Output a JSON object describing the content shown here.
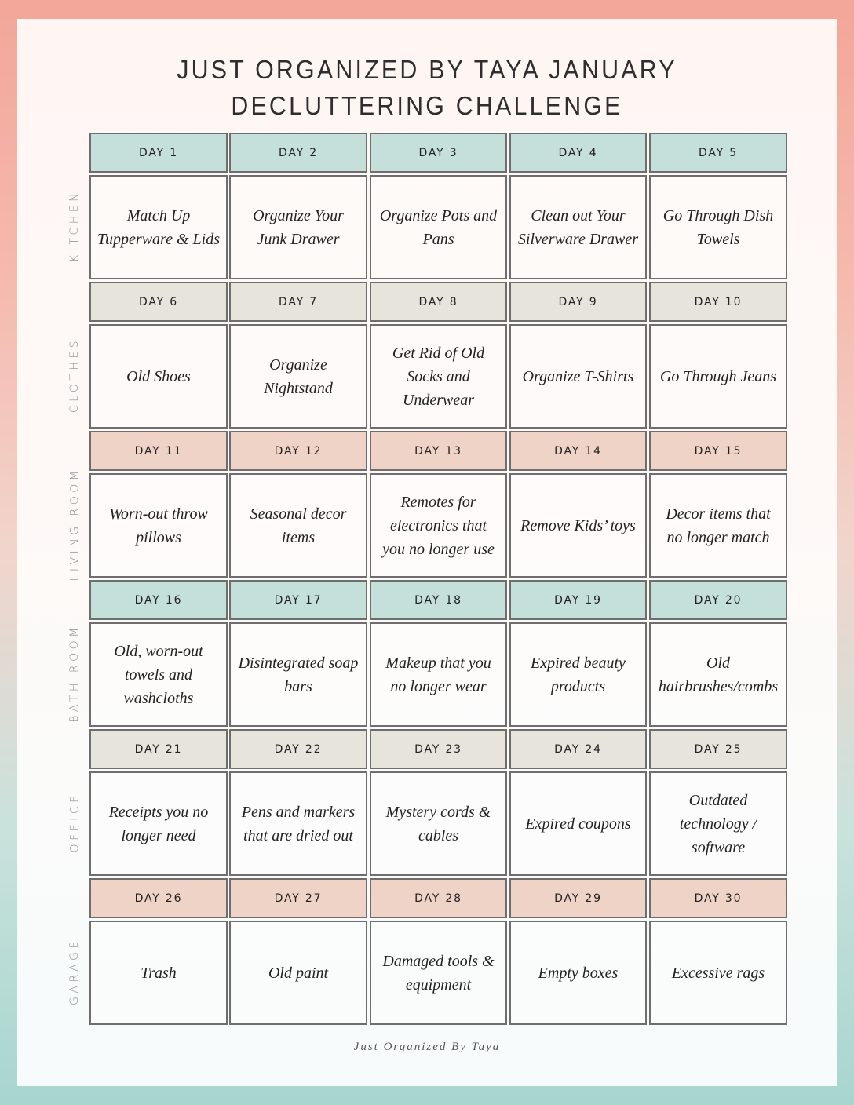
{
  "title": {
    "line1": "JUST ORGANIZED BY TAYA JANUARY",
    "line2": "DECLUTTERING CHALLENGE"
  },
  "colors": {
    "teal_header": "#c5e0db",
    "beige_header": "#e7e4dc",
    "pink_header": "#f0d3c7",
    "border": "#6e6e6e",
    "background_top": "#f3a69a",
    "background_bottom": "#a9d5cf"
  },
  "sections": [
    {
      "label": "KITCHEN",
      "header_color": "teal",
      "days": [
        {
          "day": "DAY 1",
          "task": "Match Up Tupperware & Lids"
        },
        {
          "day": "DAY 2",
          "task": "Organize Your Junk Drawer"
        },
        {
          "day": "DAY 3",
          "task": "Organize Pots and Pans"
        },
        {
          "day": "DAY 4",
          "task": "Clean out Your Silverware Drawer"
        },
        {
          "day": "DAY 5",
          "task": "Go Through Dish Towels"
        }
      ]
    },
    {
      "label": "CLOTHES",
      "header_color": "beige",
      "days": [
        {
          "day": "DAY 6",
          "task": "Old  Shoes"
        },
        {
          "day": "DAY 7",
          "task": "Organize Nightstand"
        },
        {
          "day": "DAY 8",
          "task": "Get Rid of Old Socks and Underwear"
        },
        {
          "day": "DAY 9",
          "task": "Organize T-Shirts"
        },
        {
          "day": "DAY 10",
          "task": "Go Through Jeans"
        }
      ]
    },
    {
      "label": "LIVING ROOM",
      "header_color": "pink",
      "days": [
        {
          "day": "DAY 11",
          "task": "Worn-out throw pillows"
        },
        {
          "day": "DAY 12",
          "task": "Seasonal decor items"
        },
        {
          "day": "DAY 13",
          "task": "Remotes for electronics that you no longer use"
        },
        {
          "day": "DAY 14",
          "task": "Remove Kids’ toys"
        },
        {
          "day": "DAY 15",
          "task": "Decor items that no longer match"
        }
      ]
    },
    {
      "label": "BATH ROOM",
      "header_color": "teal",
      "days": [
        {
          "day": "DAY 16",
          "task": "Old, worn-out towels and washcloths"
        },
        {
          "day": "DAY 17",
          "task": "Disintegrated soap bars"
        },
        {
          "day": "DAY 18",
          "task": "Makeup that you no longer wear"
        },
        {
          "day": "DAY 19",
          "task": "Expired beauty products"
        },
        {
          "day": "DAY 20",
          "task": "Old hairbrushes/combs"
        }
      ]
    },
    {
      "label": "OFFICE",
      "header_color": "beige",
      "days": [
        {
          "day": "DAY 21",
          "task": "Receipts you no longer need"
        },
        {
          "day": "DAY 22",
          "task": "Pens and markers that are dried out"
        },
        {
          "day": "DAY 23",
          "task": "Mystery cords & cables"
        },
        {
          "day": "DAY 24",
          "task": "Expired coupons"
        },
        {
          "day": "DAY 25",
          "task": "Outdated technology / software"
        }
      ]
    },
    {
      "label": "GARAGE",
      "header_color": "pink",
      "days": [
        {
          "day": "DAY 26",
          "task": "Trash"
        },
        {
          "day": "DAY 27",
          "task": "Old paint"
        },
        {
          "day": "DAY 28",
          "task": "Damaged tools & equipment"
        },
        {
          "day": "DAY 29",
          "task": "Empty boxes"
        },
        {
          "day": "DAY 30",
          "task": "Excessive rags"
        }
      ]
    }
  ],
  "footer": "Just Organized By Taya"
}
